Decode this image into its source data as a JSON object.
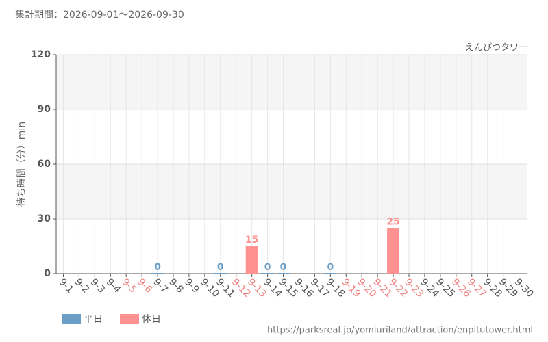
{
  "chart_data": {
    "type": "bar",
    "title": "集計期間：2026-09-01～2026-09-30",
    "subtitle": "えんぴつタワー",
    "y_label": "待ち時間（分）min",
    "source": "https://parksreal.jp/yomiuriland/attraction/enpitutower.html",
    "categories": [
      "9-1",
      "9-2",
      "9-3",
      "9-4",
      "9-5",
      "9-6",
      "9-7",
      "9-8",
      "9-9",
      "9-10",
      "9-11",
      "9-12",
      "9-13",
      "9-14",
      "9-15",
      "9-16",
      "9-17",
      "9-18",
      "9-19",
      "9-20",
      "9-21",
      "9-22",
      "9-23",
      "9-24",
      "9-25",
      "9-26",
      "9-27",
      "9-28",
      "9-29",
      "9-30"
    ],
    "category_label_colors": [
      "#555",
      "#555",
      "#555",
      "#555",
      "#f08080",
      "#f08080",
      "#555",
      "#555",
      "#555",
      "#555",
      "#555",
      "#f08080",
      "#f08080",
      "#555",
      "#555",
      "#555",
      "#555",
      "#555",
      "#f08080",
      "#f08080",
      "#f08080",
      "#f08080",
      "#f08080",
      "#555",
      "#555",
      "#f08080",
      "#f08080",
      "#555",
      "#555",
      "#555"
    ],
    "series": [
      {
        "name": "平日",
        "color": "#6a9ec6",
        "values": [
          null,
          null,
          null,
          null,
          null,
          null,
          0,
          null,
          null,
          null,
          0,
          null,
          null,
          0,
          0,
          null,
          null,
          0,
          null,
          null,
          null,
          null,
          null,
          null,
          null,
          null,
          null,
          null,
          null,
          null
        ]
      },
      {
        "name": "休日",
        "color": "#ff9191",
        "values": [
          null,
          null,
          null,
          null,
          null,
          null,
          null,
          null,
          null,
          null,
          null,
          null,
          15,
          null,
          null,
          null,
          null,
          null,
          null,
          null,
          null,
          25,
          null,
          null,
          null,
          null,
          null,
          null,
          null,
          null
        ]
      }
    ],
    "ylim": [
      0,
      120
    ],
    "yticks": [
      0,
      30,
      60,
      90,
      120
    ],
    "grid": true
  }
}
